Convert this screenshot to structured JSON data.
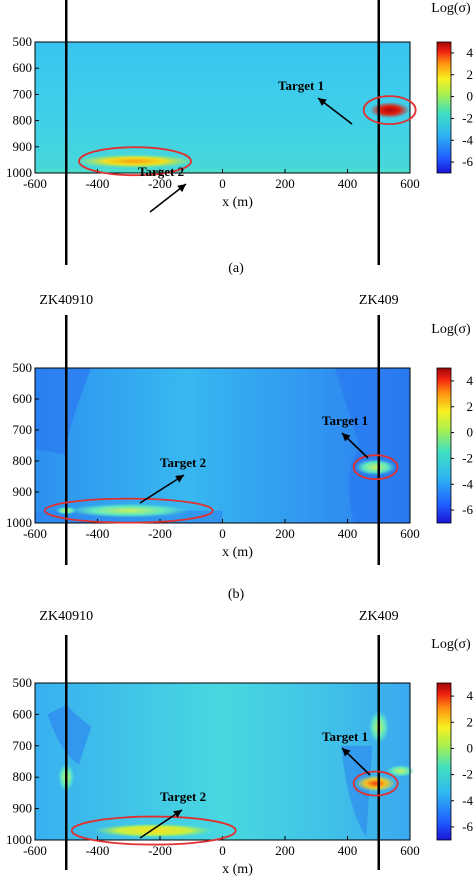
{
  "chart_data": [
    {
      "type": "heatmap",
      "panel_label": "(a)",
      "xlabel": "x (m)",
      "ylabel": "",
      "xlim": [
        -600,
        600
      ],
      "ylim": [
        500,
        1000
      ],
      "x_ticks": [
        "-600",
        "-400",
        "-200",
        "0",
        "200",
        "400",
        "600"
      ],
      "y_ticks": [
        "500",
        "600",
        "700",
        "800",
        "900",
        "1000"
      ],
      "colorbar": {
        "title": "Log(σ)",
        "range": [
          -7,
          5
        ],
        "ticks": [
          "4",
          "2",
          "0",
          "-2",
          "-4",
          "-6"
        ]
      },
      "wells": [
        {
          "name": "",
          "x": -500
        },
        {
          "name": "",
          "x": 500
        }
      ],
      "targets": [
        {
          "label": "Target 1",
          "x": 535,
          "y": 760,
          "value": 4.5
        },
        {
          "label": "Target 2",
          "x": -280,
          "y": 955,
          "value": 1.5
        }
      ]
    },
    {
      "type": "heatmap",
      "panel_label": "(b)",
      "xlabel": "x (m)",
      "ylabel": "",
      "xlim": [
        -600,
        600
      ],
      "ylim": [
        500,
        1000
      ],
      "x_ticks": [
        "-600",
        "-400",
        "-200",
        "0",
        "200",
        "400",
        "600"
      ],
      "y_ticks": [
        "500",
        "600",
        "700",
        "800",
        "900",
        "1000"
      ],
      "colorbar": {
        "title": "Log(σ)",
        "range": [
          -7,
          5
        ],
        "ticks": [
          "4",
          "2",
          "0",
          "-2",
          "-4",
          "-6"
        ]
      },
      "wells": [
        {
          "name": "ZK40910",
          "x": -500
        },
        {
          "name": "ZK409",
          "x": 500
        }
      ],
      "targets": [
        {
          "label": "Target 1",
          "x": 490,
          "y": 820,
          "value": -1.0
        },
        {
          "label": "Target 2",
          "x": -300,
          "y": 960,
          "value": -2.0
        }
      ]
    },
    {
      "type": "heatmap",
      "panel_label": "(c)",
      "xlabel": "x (m)",
      "ylabel": "",
      "xlim": [
        -600,
        600
      ],
      "ylim": [
        500,
        1000
      ],
      "x_ticks": [
        "-600",
        "-400",
        "-200",
        "0",
        "200",
        "400",
        "600"
      ],
      "y_ticks": [
        "500",
        "600",
        "700",
        "800",
        "900",
        "1000"
      ],
      "colorbar": {
        "title": "Log(σ)",
        "range": [
          -7,
          5
        ],
        "ticks": [
          "4",
          "2",
          "0",
          "-2",
          "-4",
          "-6"
        ]
      },
      "wells": [
        {
          "name": "ZK40910",
          "x": -500
        },
        {
          "name": "ZK409",
          "x": 500
        }
      ],
      "targets": [
        {
          "label": "Target 1",
          "x": 490,
          "y": 820,
          "value": 1.5
        },
        {
          "label": "Target 2",
          "x": -220,
          "y": 970,
          "value": 0.5
        }
      ]
    }
  ],
  "colors": {
    "ellipse": "#e03030",
    "background_field": "#33b8f0",
    "well_line": "#000000"
  }
}
